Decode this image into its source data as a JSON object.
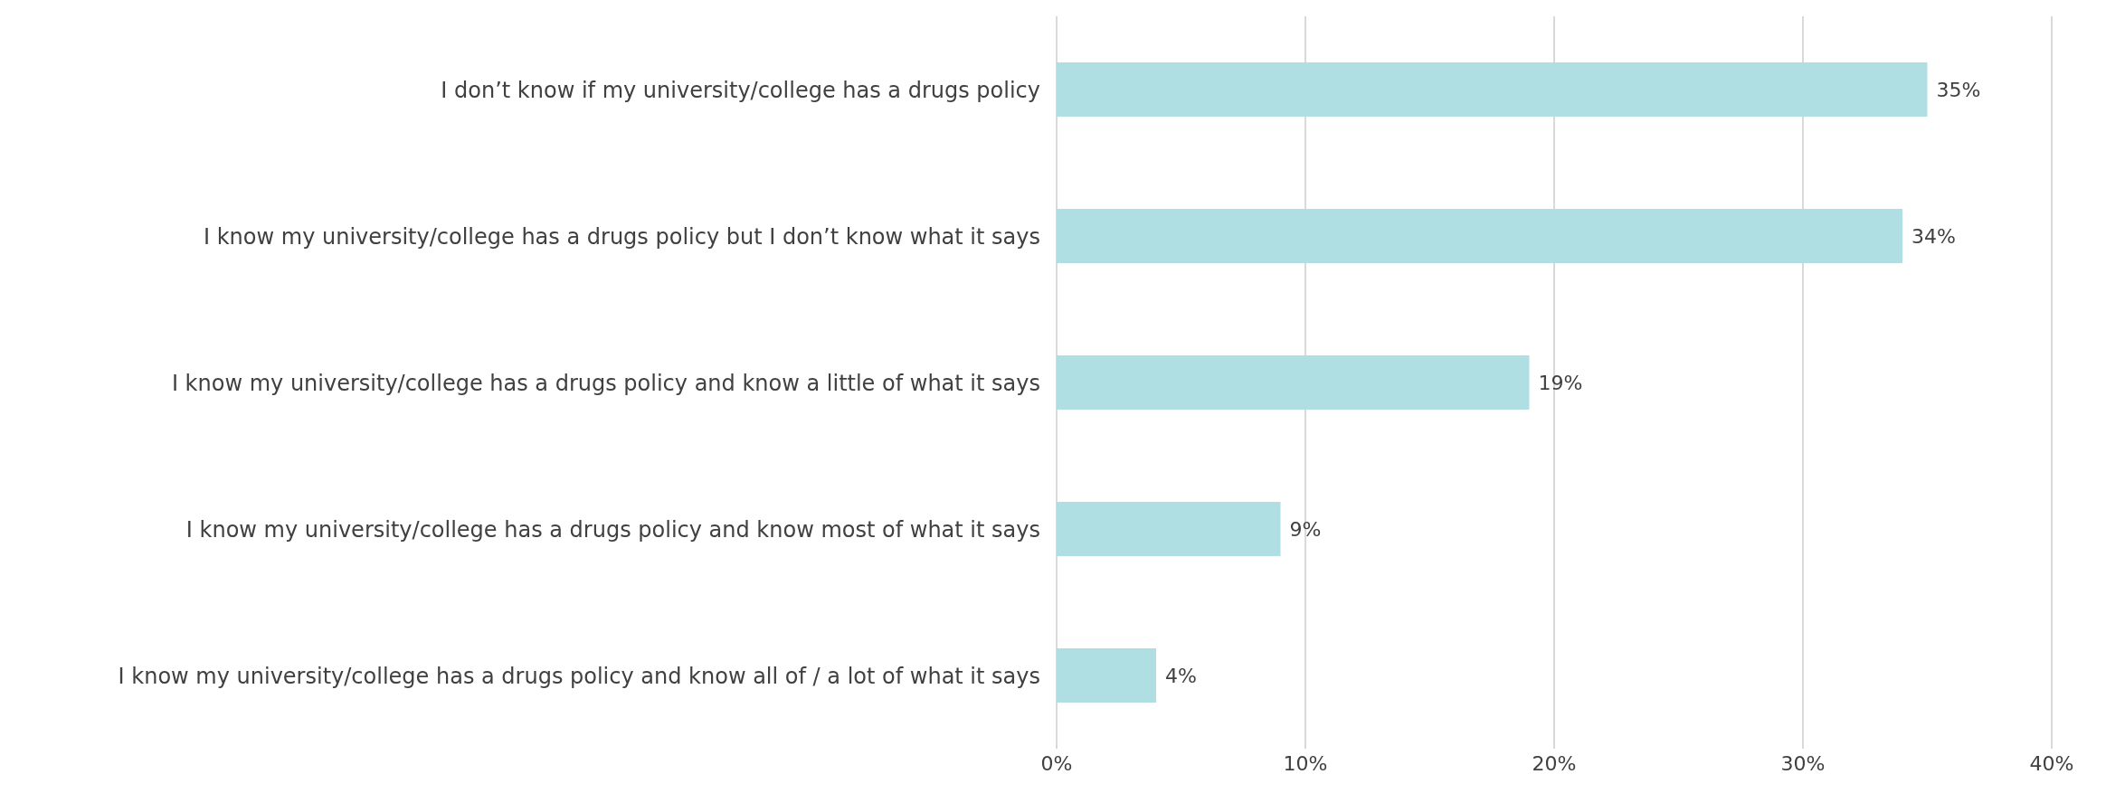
{
  "chart_data": {
    "type": "bar",
    "orientation": "horizontal",
    "categories": [
      "I don’t know if my university/college has a drugs policy",
      "I know my university/college has a drugs policy but I don’t know what it says",
      "I know my university/college has a drugs policy and know a little of what it says",
      "I know my university/college has a drugs policy and know most of what it says",
      "I know my university/college has a drugs policy and know all of / a lot of what it says"
    ],
    "values": [
      35,
      34,
      19,
      9,
      4
    ],
    "value_labels": [
      "35%",
      "34%",
      "19%",
      "9%",
      "4%"
    ],
    "color": "#b0dfe3",
    "xlim": [
      0,
      40
    ],
    "xticks": [
      {
        "value": 0,
        "label": "0%"
      },
      {
        "value": 10,
        "label": "10%"
      },
      {
        "value": 20,
        "label": "20%"
      },
      {
        "value": 30,
        "label": "30%"
      },
      {
        "value": 40,
        "label": "40%"
      }
    ],
    "grid": "x"
  }
}
